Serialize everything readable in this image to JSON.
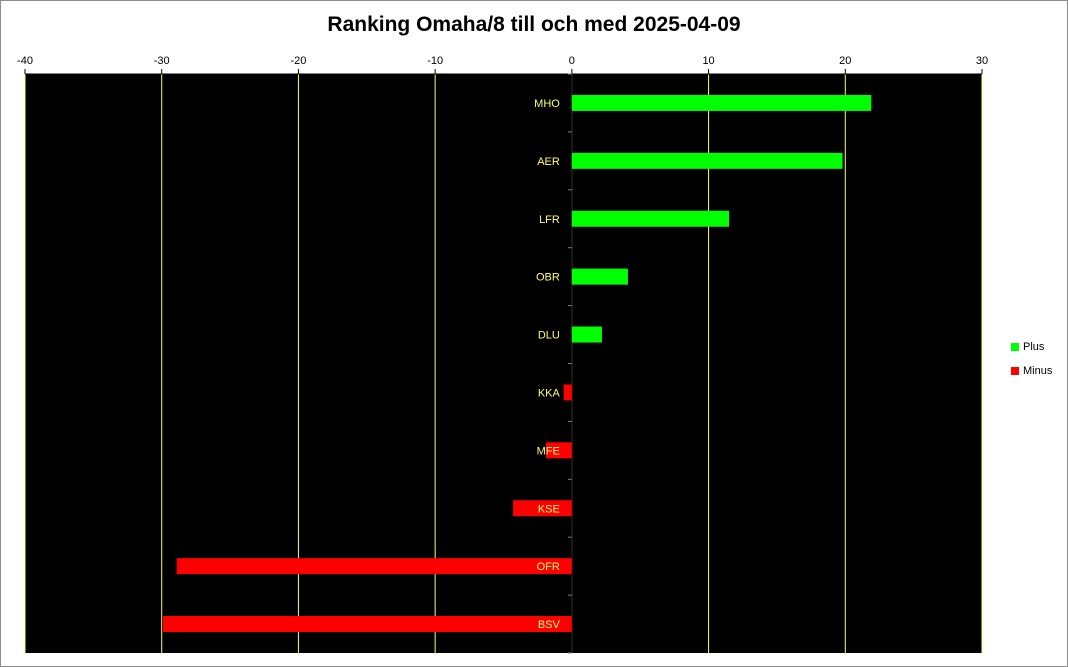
{
  "chart_data": {
    "type": "bar",
    "orientation": "horizontal",
    "title": "Ranking Omaha/8 till och med 2025-04-09",
    "categories": [
      "MHO",
      "AER",
      "LFR",
      "OBR",
      "DLU",
      "KKA",
      "MFE",
      "KSE",
      "OFR",
      "BSV"
    ],
    "series": [
      {
        "name": "Plus",
        "color": "#00ff00",
        "values": [
          21.9,
          19.8,
          11.5,
          4.1,
          2.2,
          null,
          null,
          null,
          null,
          null
        ]
      },
      {
        "name": "Minus",
        "color": "#ff0000",
        "values": [
          null,
          null,
          null,
          null,
          null,
          -0.6,
          -1.9,
          -4.3,
          -28.9,
          -29.9
        ]
      }
    ],
    "xlim": [
      -40,
      30
    ],
    "x_ticks": [
      -40,
      -30,
      -20,
      -10,
      0,
      10,
      20,
      30
    ],
    "xlabel": "",
    "ylabel": "",
    "grid": "vertical",
    "legend_position": "right",
    "plot_background": "#000000",
    "grid_color": "#ffff66",
    "category_label_color": "#ffff66"
  }
}
